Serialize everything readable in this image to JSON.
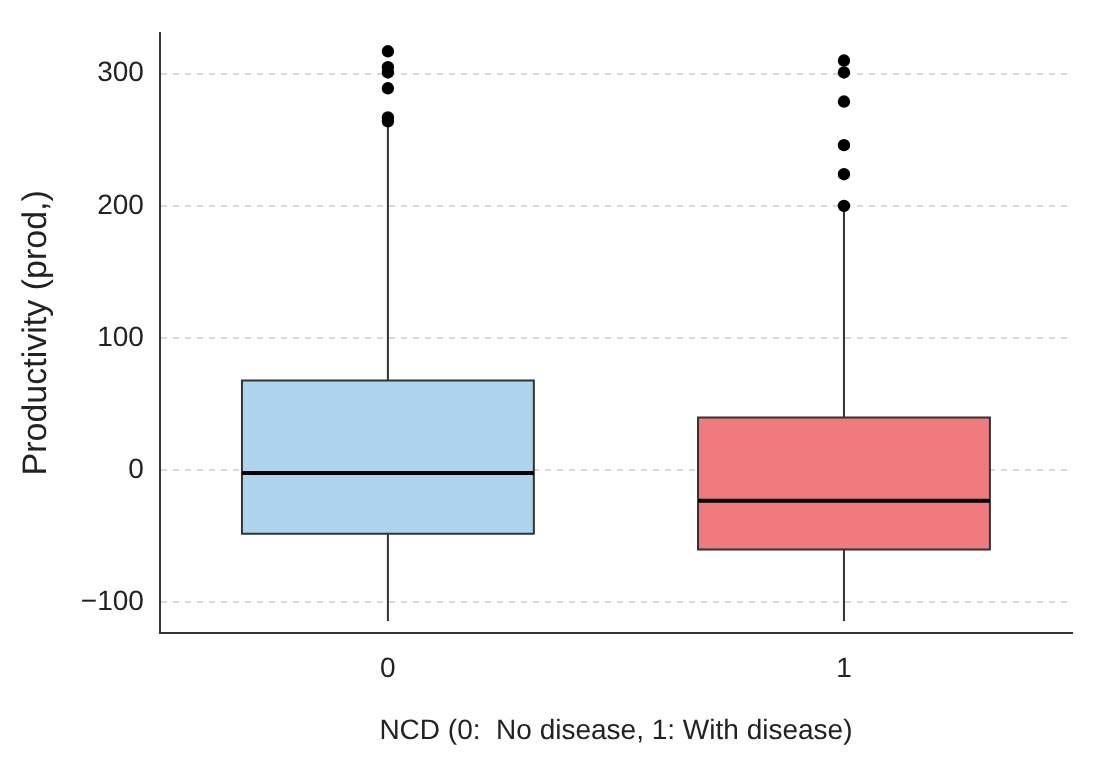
{
  "chart_data": {
    "type": "box",
    "xlabel": "NCD (0:  No disease, 1: With disease)",
    "ylabel": "Productivity (prod,)",
    "categories": [
      "0",
      "1"
    ],
    "boxes": [
      {
        "low": -114,
        "q1": -48,
        "median": -2,
        "q3": 68,
        "high": 262,
        "outliers": [
          317,
          305,
          301,
          289,
          267,
          264
        ]
      },
      {
        "low": -114,
        "q1": -60,
        "median": -23,
        "q3": 40,
        "high": 196,
        "outliers": [
          310,
          301,
          279,
          246,
          224,
          200
        ]
      }
    ],
    "colors": [
      "#aed3ec",
      "#f07b7e"
    ],
    "ylim": [
      -123,
      331
    ],
    "yticks": [
      -100,
      0,
      100,
      200,
      300
    ],
    "grid": "y"
  }
}
